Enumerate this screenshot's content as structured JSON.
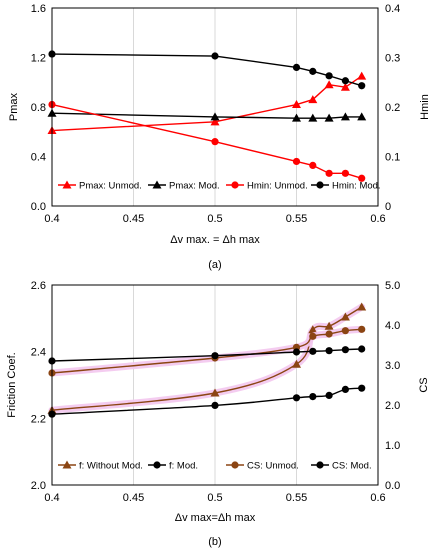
{
  "chart_data": [
    {
      "type": "line",
      "panel_label": "(a)",
      "xlabel": "Δv max. = Δh max",
      "ylabel_left": "Pmax",
      "ylabel_right": "Hmin",
      "xlim": [
        0.4,
        0.6
      ],
      "ylim_left": [
        0,
        1.6
      ],
      "ylim_right": [
        0,
        0.4
      ],
      "x_ticks": [
        "0.4",
        "0.45",
        "0.5",
        "0.55",
        "0.6"
      ],
      "y_ticks_left": [
        "0.0",
        "0.4",
        "0.8",
        "1.2",
        "1.6"
      ],
      "y_ticks_right": [
        "0",
        "0.1",
        "0.2",
        "0.3",
        "0.4"
      ],
      "grid": "vertical",
      "legend_position": "bottom",
      "series": [
        {
          "name": "Pmax: Unmod.",
          "axis": "left",
          "color": "#ff0000",
          "marker": "triangle",
          "smooth": false,
          "x": [
            0.4,
            0.5,
            0.55,
            0.56,
            0.57,
            0.58,
            0.59
          ],
          "y": [
            0.61,
            0.68,
            0.82,
            0.86,
            0.98,
            0.96,
            1.05
          ]
        },
        {
          "name": "Pmax: Mod.",
          "axis": "left",
          "color": "#000000",
          "marker": "triangle",
          "smooth": false,
          "x": [
            0.4,
            0.5,
            0.55,
            0.56,
            0.57,
            0.58,
            0.59
          ],
          "y": [
            0.75,
            0.72,
            0.71,
            0.71,
            0.71,
            0.72,
            0.72
          ]
        },
        {
          "name": "Hmin: Unmod.",
          "axis": "right",
          "color": "#ff0000",
          "marker": "circle",
          "smooth": false,
          "x": [
            0.4,
            0.5,
            0.55,
            0.56,
            0.57,
            0.58,
            0.59
          ],
          "y": [
            0.205,
            0.13,
            0.09,
            0.082,
            0.066,
            0.066,
            0.056
          ]
        },
        {
          "name": "Hmin: Mod.",
          "axis": "right",
          "color": "#000000",
          "marker": "circle",
          "smooth": false,
          "x": [
            0.4,
            0.5,
            0.55,
            0.56,
            0.57,
            0.58,
            0.59
          ],
          "y": [
            0.307,
            0.303,
            0.28,
            0.272,
            0.263,
            0.253,
            0.243
          ]
        }
      ]
    },
    {
      "type": "line",
      "panel_label": "(b)",
      "xlabel": "Δv max=Δh max",
      "ylabel_left": "Friction Coef.",
      "ylabel_right": "CS",
      "xlim": [
        0.4,
        0.6
      ],
      "ylim_left": [
        2.0,
        2.6
      ],
      "ylim_right": [
        0,
        5
      ],
      "x_ticks": [
        "0.4",
        "0.45",
        "0.5",
        "0.55",
        "0.6"
      ],
      "y_ticks_left": [
        "2.0",
        "2.2",
        "2.4",
        "2.6"
      ],
      "y_ticks_right": [
        "0.0",
        "1.0",
        "2.0",
        "3.0",
        "4.0",
        "5.0"
      ],
      "grid": "vertical",
      "legend_position": "bottom",
      "series": [
        {
          "name": "f: Without Mod.",
          "axis": "right",
          "color": "#8b4513",
          "marker": "triangle",
          "smooth": true,
          "highlight": true,
          "x": [
            0.4,
            0.5,
            0.55,
            0.56,
            0.57,
            0.58,
            0.59
          ],
          "y": [
            1.87,
            2.3,
            3.02,
            3.88,
            3.97,
            4.2,
            4.45
          ]
        },
        {
          "name": "f: Mod.",
          "axis": "right",
          "color": "#000000",
          "marker": "circle",
          "smooth": true,
          "highlight": false,
          "x": [
            0.4,
            0.5,
            0.55,
            0.56,
            0.57,
            0.58,
            0.59
          ],
          "y": [
            1.77,
            1.99,
            2.18,
            2.21,
            2.24,
            2.39,
            2.42
          ]
        },
        {
          "name": "CS: Unmod.",
          "axis": "left",
          "color": "#8b4513",
          "marker": "circle",
          "smooth": true,
          "highlight": true,
          "x": [
            0.4,
            0.5,
            0.55,
            0.56,
            0.57,
            0.58,
            0.59
          ],
          "y": [
            2.336,
            2.381,
            2.413,
            2.446,
            2.453,
            2.463,
            2.467
          ]
        },
        {
          "name": "CS: Mod.",
          "axis": "left",
          "color": "#000000",
          "marker": "circle",
          "smooth": true,
          "highlight": false,
          "x": [
            0.4,
            0.5,
            0.55,
            0.56,
            0.57,
            0.58,
            0.59
          ],
          "y": [
            2.372,
            2.388,
            2.399,
            2.401,
            2.403,
            2.406,
            2.408
          ]
        }
      ]
    }
  ]
}
